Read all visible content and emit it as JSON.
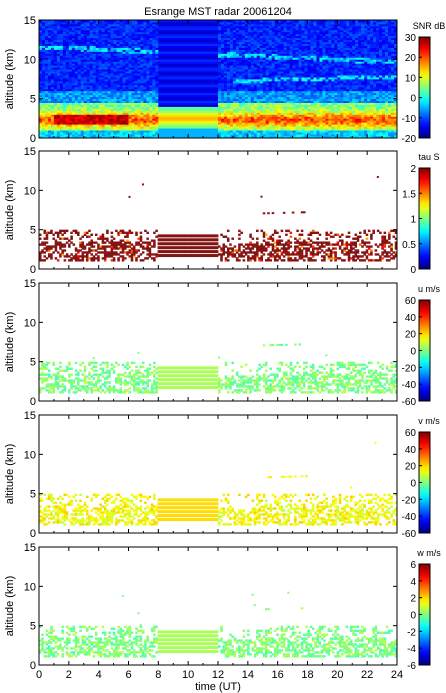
{
  "chart_data": {
    "type": "heatmap",
    "title": "Esrange MST radar 20061204",
    "xlabel": "time (UT)",
    "xlim": [
      0,
      24
    ],
    "x_ticks": [
      "0",
      "2",
      "4",
      "6",
      "8",
      "10",
      "12",
      "14",
      "16",
      "18",
      "20",
      "22",
      "24"
    ],
    "panels": [
      {
        "id": "snr",
        "ylabel": "altitude (km)",
        "ylim": [
          0,
          15
        ],
        "y_ticks": [
          "0",
          "5",
          "10",
          "15"
        ],
        "colorbar_label": "SNR dB",
        "clim": [
          -20,
          30
        ],
        "colorbar_ticks": [
          "30",
          "20",
          "10",
          "0",
          "-10",
          "-20"
        ],
        "fill": "full",
        "description_bands": [
          {
            "t_start": 0,
            "t_end": 24,
            "alt_low": 1.0,
            "alt_high": 4.0,
            "level": "high"
          },
          {
            "t_start": 1,
            "t_end": 6,
            "alt_low": 1.5,
            "alt_high": 2.8,
            "level": "max"
          }
        ]
      },
      {
        "id": "tau",
        "ylabel": "altitude (km)",
        "ylim": [
          0,
          15
        ],
        "y_ticks": [
          "0",
          "5",
          "10",
          "15"
        ],
        "colorbar_label": "tau S",
        "clim": [
          0,
          2
        ],
        "colorbar_ticks": [
          "2",
          "1.5",
          "1",
          "0.5",
          "0"
        ],
        "fill": "sparse"
      },
      {
        "id": "u",
        "ylabel": "altitude (km)",
        "ylim": [
          0,
          15
        ],
        "y_ticks": [
          "0",
          "5",
          "10",
          "15"
        ],
        "colorbar_label": "u m/s",
        "clim": [
          -60,
          60
        ],
        "colorbar_ticks": [
          "60",
          "40",
          "20",
          "0",
          "-20",
          "-40",
          "-60"
        ],
        "fill": "sparse"
      },
      {
        "id": "v",
        "ylabel": "altitude (km)",
        "ylim": [
          0,
          15
        ],
        "y_ticks": [
          "0",
          "5",
          "10",
          "15"
        ],
        "colorbar_label": "v m/s",
        "clim": [
          -60,
          60
        ],
        "colorbar_ticks": [
          "60",
          "40",
          "20",
          "0",
          "-20",
          "-40",
          "-60"
        ],
        "fill": "sparse"
      },
      {
        "id": "w",
        "ylabel": "altitude (km)",
        "ylim": [
          0,
          15
        ],
        "y_ticks": [
          "0",
          "5",
          "10",
          "15"
        ],
        "colorbar_label": "w m/s",
        "clim": [
          -6,
          6
        ],
        "colorbar_ticks": [
          "6",
          "4",
          "2",
          "0",
          "-2",
          "-4",
          "-6"
        ],
        "fill": "sparse"
      }
    ]
  }
}
